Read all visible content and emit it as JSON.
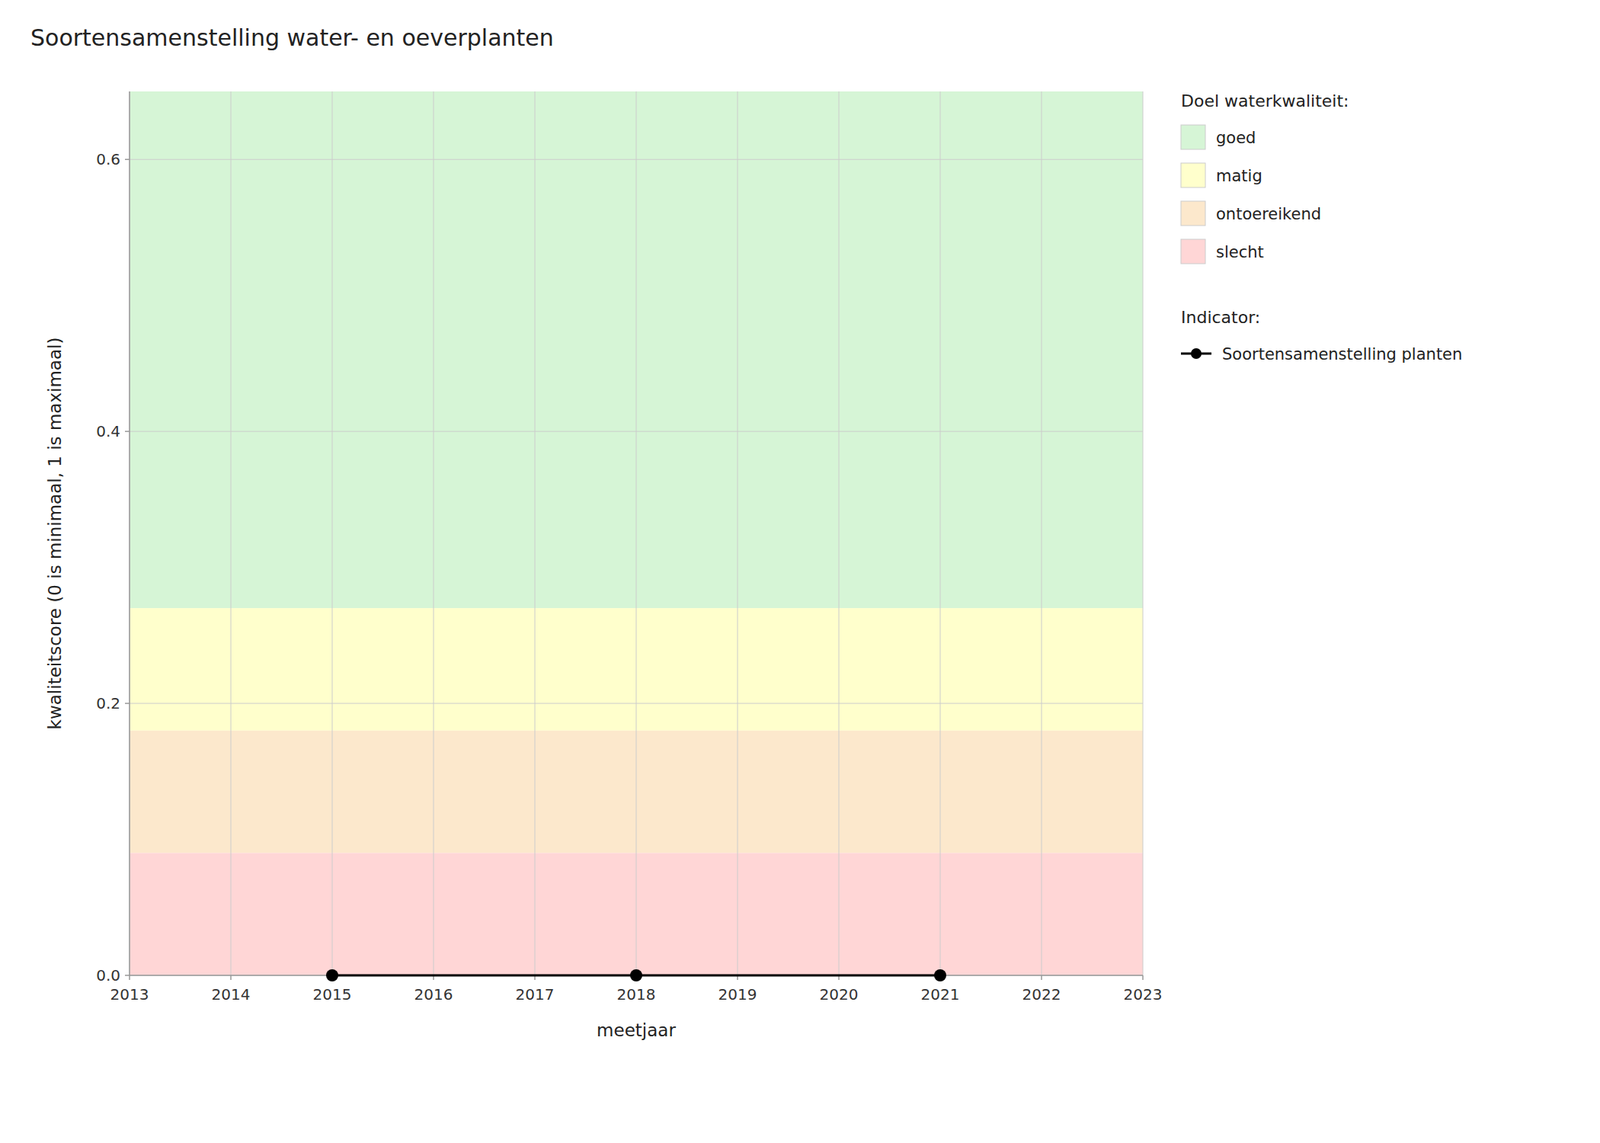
{
  "chart_data": {
    "type": "line",
    "title": "Soortensamenstelling water- en oeverplanten",
    "x_label": "meetjaar",
    "y_label": "kwaliteitscore (0 is minimaal, 1 is maximaal)",
    "x": [
      2015,
      2018,
      2021
    ],
    "series": [
      {
        "name": "Soortensamenstelling planten",
        "color": "black",
        "marker": "circle",
        "line_style": "solid",
        "values": [
          0.0,
          0.0,
          0.0
        ]
      }
    ],
    "xlim": [
      2013,
      2023
    ],
    "xticks": [
      2013,
      2014,
      2015,
      2016,
      2017,
      2018,
      2019,
      2020,
      2021,
      2022,
      2023
    ],
    "ylim": [
      0,
      0.65
    ],
    "yticks": [
      {
        "value": 0.0,
        "label": "0.0"
      },
      0.2,
      0.4,
      0.6
    ],
    "grid": true,
    "legend": "right",
    "bands_title": "Doel waterkwaliteit:",
    "series_title": "Indicator:",
    "bands": [
      {
        "name": "goed",
        "ymin": 0.27,
        "ymax": 0.65,
        "color": "#d6f5d6"
      },
      {
        "name": "matig",
        "ymin": 0.18,
        "ymax": 0.27,
        "color": "#ffffcc"
      },
      {
        "name": "ontoereikend",
        "ymin": 0.09,
        "ymax": 0.18,
        "color": "#fce8cc"
      },
      {
        "name": "slecht",
        "ymin": 0.0,
        "ymax": 0.09,
        "color": "#ffd6d6"
      }
    ]
  }
}
